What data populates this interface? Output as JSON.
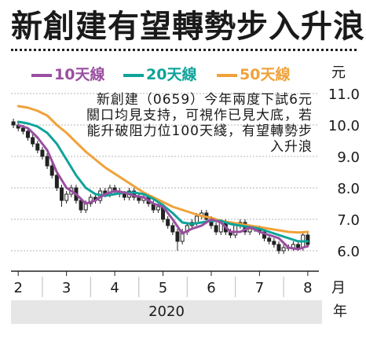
{
  "title": "新創建有望轉勢步入升浪",
  "annotation": "新創建（0659）今年兩度下試6元關口均見支持，可視作已見大底，若能升破阻力位100天綫，有望轉勢步入升浪",
  "x_unit": "月",
  "y_unit": "元",
  "year": "2020",
  "year_unit": "年",
  "colors": {
    "ma10": "#9a4fa0",
    "ma20": "#0fa39a",
    "ma50": "#f0a23a",
    "candle": "#222222",
    "gridline": "#b5b5b5"
  },
  "legend": [
    {
      "label": "10天線",
      "color": "#9a4fa0"
    },
    {
      "label": "20天線",
      "color": "#0fa39a"
    },
    {
      "label": "50天線",
      "color": "#f0a23a"
    }
  ],
  "chart_data": {
    "type": "line",
    "title": "新創建有望轉勢步入升浪",
    "xlabel": "月",
    "ylabel": "元",
    "x_ticks": [
      "2",
      "3",
      "4",
      "5",
      "6",
      "7",
      "8"
    ],
    "y_ticks": [
      "11.0",
      "10.0",
      "9.0",
      "8.0",
      "7.0",
      "6.0"
    ],
    "ylim": [
      5.6,
      11.2
    ],
    "grid": "horizontal",
    "legend_position": "top",
    "series": [
      {
        "name": "10天線",
        "x": [
          2.0,
          2.2,
          2.4,
          2.6,
          2.8,
          3.0,
          3.2,
          3.4,
          3.6,
          3.8,
          4.0,
          4.2,
          4.4,
          4.6,
          4.8,
          5.0,
          5.2,
          5.4,
          5.6,
          5.8,
          6.0,
          6.2,
          6.4,
          6.6,
          6.8,
          7.0,
          7.2,
          7.4,
          7.6,
          7.8,
          8.0
        ],
        "values": [
          10.0,
          9.9,
          9.6,
          9.2,
          8.5,
          8.0,
          7.8,
          7.5,
          7.6,
          7.8,
          7.9,
          7.85,
          7.75,
          7.7,
          7.5,
          7.4,
          7.0,
          6.55,
          6.7,
          6.8,
          7.0,
          6.9,
          6.6,
          6.6,
          6.75,
          6.6,
          6.5,
          6.4,
          6.1,
          6.05,
          6.15
        ]
      },
      {
        "name": "20天線",
        "x": [
          2.0,
          2.2,
          2.4,
          2.6,
          2.8,
          3.0,
          3.2,
          3.4,
          3.6,
          3.8,
          4.0,
          4.2,
          4.4,
          4.6,
          4.8,
          5.0,
          5.2,
          5.4,
          5.6,
          5.8,
          6.0,
          6.2,
          6.4,
          6.6,
          6.8,
          7.0,
          7.2,
          7.4,
          7.6,
          7.8,
          8.0
        ],
        "values": [
          10.1,
          10.05,
          9.95,
          9.75,
          9.4,
          8.9,
          8.4,
          8.0,
          7.8,
          7.75,
          7.8,
          7.85,
          7.85,
          7.8,
          7.65,
          7.45,
          7.2,
          6.9,
          6.85,
          6.9,
          6.95,
          6.95,
          6.85,
          6.8,
          6.75,
          6.7,
          6.6,
          6.5,
          6.4,
          6.3,
          6.3
        ]
      },
      {
        "name": "50天線",
        "x": [
          2.0,
          2.2,
          2.4,
          2.6,
          2.8,
          3.0,
          3.2,
          3.4,
          3.6,
          3.8,
          4.0,
          4.2,
          4.4,
          4.6,
          4.8,
          5.0,
          5.2,
          5.4,
          5.6,
          5.8,
          6.0,
          6.2,
          6.4,
          6.6,
          6.8,
          7.0,
          7.2,
          7.4,
          7.6,
          7.8,
          8.0
        ],
        "values": [
          10.6,
          10.55,
          10.45,
          10.3,
          10.0,
          9.75,
          9.45,
          9.15,
          8.9,
          8.65,
          8.45,
          8.25,
          8.05,
          7.85,
          7.7,
          7.55,
          7.4,
          7.3,
          7.2,
          7.1,
          7.05,
          6.95,
          6.9,
          6.85,
          6.8,
          6.75,
          6.7,
          6.65,
          6.6,
          6.58,
          6.6
        ]
      }
    ],
    "candles": {
      "x": [
        1.9,
        2.0,
        2.1,
        2.2,
        2.3,
        2.4,
        2.5,
        2.6,
        2.7,
        2.8,
        2.9,
        3.0,
        3.1,
        3.2,
        3.3,
        3.4,
        3.5,
        3.6,
        3.7,
        3.8,
        3.9,
        4.0,
        4.1,
        4.2,
        4.3,
        4.4,
        4.5,
        4.6,
        4.7,
        4.8,
        4.9,
        5.0,
        5.1,
        5.2,
        5.3,
        5.4,
        5.5,
        5.6,
        5.7,
        5.8,
        5.9,
        6.0,
        6.1,
        6.2,
        6.3,
        6.4,
        6.5,
        6.6,
        6.7,
        6.8,
        6.9,
        7.0,
        7.1,
        7.2,
        7.3,
        7.4,
        7.5,
        7.6,
        7.7,
        7.8,
        7.9,
        8.0
      ],
      "open": [
        10.1,
        10.0,
        9.9,
        9.8,
        9.6,
        9.4,
        9.2,
        9.0,
        8.7,
        8.4,
        8.0,
        7.6,
        7.8,
        8.0,
        7.6,
        7.3,
        7.5,
        7.7,
        7.6,
        7.9,
        7.8,
        8.0,
        7.9,
        7.8,
        7.7,
        7.9,
        7.7,
        7.6,
        7.7,
        7.5,
        7.3,
        7.4,
        7.0,
        6.8,
        6.6,
        6.3,
        6.6,
        6.8,
        6.9,
        7.1,
        7.2,
        7.0,
        6.8,
        6.6,
        6.9,
        6.6,
        6.5,
        6.8,
        6.9,
        6.6,
        6.7,
        6.7,
        6.6,
        6.4,
        6.3,
        6.2,
        6.0,
        6.1,
        6.1,
        6.2,
        6.1,
        6.5
      ],
      "close": [
        10.0,
        9.9,
        9.8,
        9.6,
        9.4,
        9.2,
        9.0,
        8.7,
        8.4,
        8.0,
        7.6,
        7.8,
        8.0,
        7.6,
        7.3,
        7.5,
        7.7,
        7.6,
        7.9,
        7.8,
        8.0,
        7.9,
        7.8,
        7.7,
        7.9,
        7.7,
        7.6,
        7.7,
        7.5,
        7.3,
        7.4,
        7.0,
        6.8,
        6.6,
        6.3,
        6.6,
        6.8,
        6.9,
        7.1,
        7.2,
        7.0,
        6.8,
        6.6,
        6.9,
        6.6,
        6.5,
        6.8,
        6.9,
        6.6,
        6.7,
        6.7,
        6.6,
        6.4,
        6.3,
        6.2,
        6.0,
        6.1,
        6.1,
        6.2,
        6.1,
        6.5,
        6.2
      ],
      "high": [
        10.2,
        10.1,
        10.0,
        9.9,
        9.7,
        9.5,
        9.3,
        9.1,
        8.8,
        8.5,
        8.1,
        7.9,
        8.1,
        8.1,
        7.7,
        7.6,
        7.8,
        7.8,
        8.0,
        8.0,
        8.1,
        8.1,
        8.0,
        7.9,
        8.0,
        8.0,
        7.8,
        7.8,
        7.8,
        7.6,
        7.5,
        7.5,
        7.1,
        6.9,
        6.7,
        6.7,
        6.9,
        7.0,
        7.2,
        7.3,
        7.3,
        7.1,
        6.9,
        7.0,
        7.0,
        6.7,
        6.9,
        7.0,
        7.0,
        6.8,
        6.8,
        6.8,
        6.7,
        6.5,
        6.4,
        6.3,
        6.2,
        6.2,
        6.3,
        6.3,
        6.6,
        6.6
      ],
      "low": [
        9.9,
        9.8,
        9.7,
        9.5,
        9.3,
        9.1,
        8.9,
        8.6,
        8.3,
        7.9,
        7.4,
        7.5,
        7.7,
        7.5,
        7.2,
        7.2,
        7.4,
        7.5,
        7.5,
        7.7,
        7.7,
        7.8,
        7.7,
        7.6,
        7.6,
        7.6,
        7.5,
        7.5,
        7.4,
        7.2,
        7.2,
        6.9,
        6.7,
        6.5,
        6.0,
        6.2,
        6.5,
        6.7,
        6.8,
        7.0,
        6.9,
        6.7,
        6.5,
        6.5,
        6.5,
        6.4,
        6.4,
        6.7,
        6.5,
        6.5,
        6.6,
        6.5,
        6.3,
        6.2,
        6.1,
        5.9,
        5.9,
        6.0,
        6.0,
        6.0,
        6.0,
        6.1
      ]
    }
  }
}
